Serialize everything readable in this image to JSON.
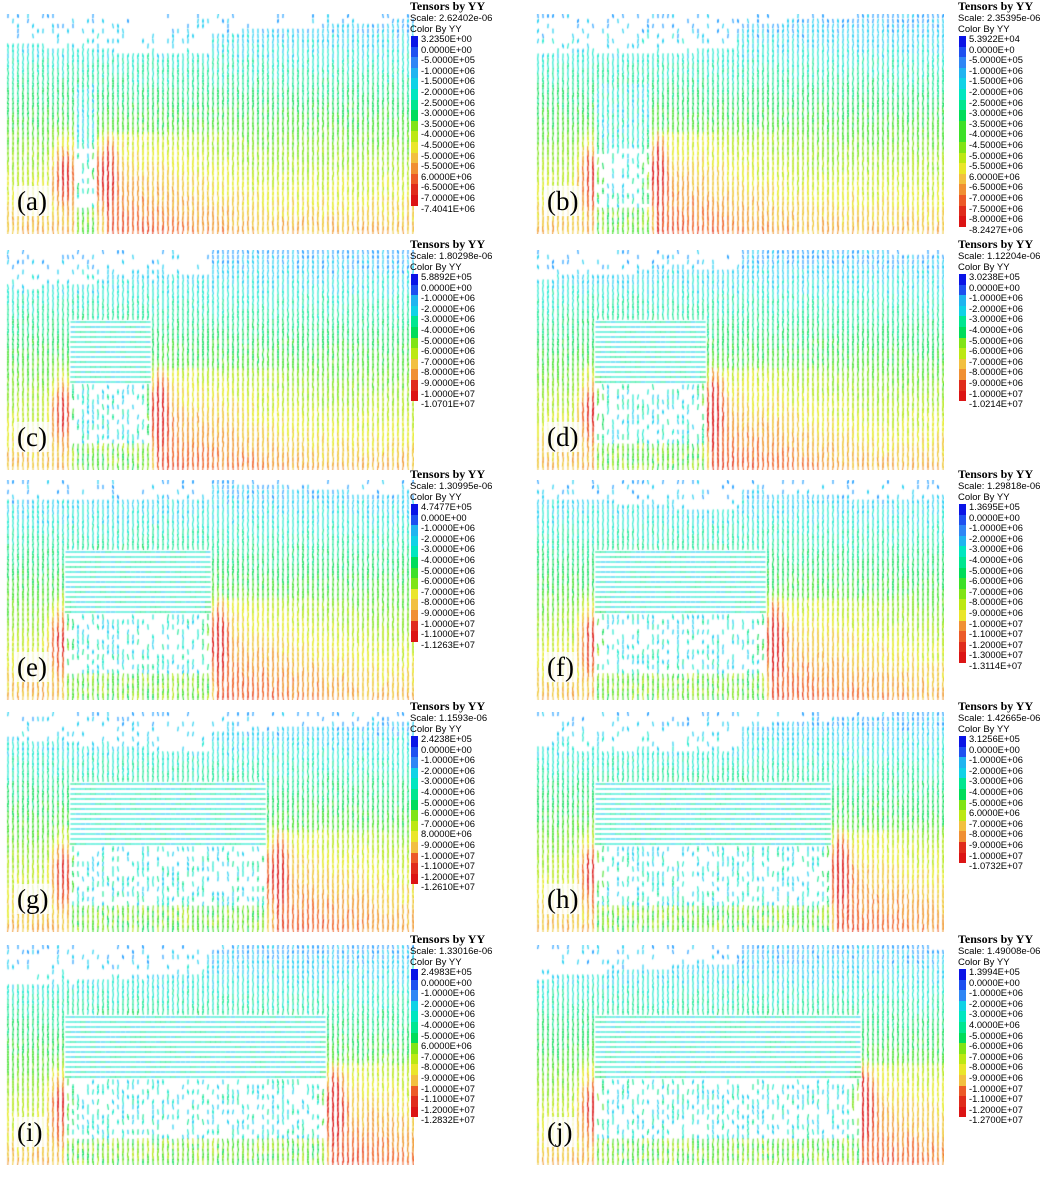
{
  "colors": {
    "bins": [
      "#0a14e6",
      "#0050ff",
      "#0090ff",
      "#00c8f0",
      "#00e6c8",
      "#00e68c",
      "#00dc50",
      "#38e020",
      "#7ce414",
      "#b4e814",
      "#e6ec28",
      "#f0c83c",
      "#f09a32",
      "#f06428",
      "#e63c1e",
      "#dc1414"
    ],
    "legend_bins": [
      "#0a14e6",
      "#1e50f0",
      "#2f86f5",
      "#20b4f0",
      "#10d2e6",
      "#00e6c0",
      "#00e690",
      "#00dc5a",
      "#3ce028",
      "#80e416",
      "#bce814",
      "#eae62a",
      "#f2c040",
      "#f09034",
      "#ec5a28",
      "#e02c1c",
      "#dc1414"
    ]
  },
  "panels": [
    {
      "tag": "(a)",
      "legend": {
        "title": "Tensors by YY",
        "scale": "Scale: 2.62402e-06",
        "color_by": "Color By YY",
        "labels": [
          "3.2350E+00",
          "0.0000E+00",
          "-5.0000E+05",
          "-1.0000E+06",
          "-1.5000E+06",
          "-2.0000E+06",
          "-2.5000E+06",
          "-3.0000E+06",
          "-3.5000E+06",
          "-4.0000E+06",
          "-4.5000E+06",
          "-5.0000E+06",
          "-5.5000E+06",
          "6.0000E+06",
          "-6.5000E+06",
          "-7.0000E+06",
          "-7.4041E+06"
        ]
      },
      "stage": {
        "openings": 1,
        "pillars": [
          0.145,
          0.24
        ],
        "zone": [
          0.17,
          0.215
        ]
      }
    },
    {
      "tag": "(b)",
      "legend": {
        "title": "Tensors by YY",
        "scale": "Scale: 2.35395e-06",
        "color_by": "Color By YY",
        "labels": [
          "5.3922E+04",
          "0.0000E+0",
          "-5.0000E+05",
          "-1.0000E+06",
          "-1.5000E+06",
          "-2.0000E+06",
          "-2.5000E+06",
          "-3.0000E+06",
          "-3.5000E+06",
          "-4.0000E+06",
          "-4.5000E+06",
          "-5.0000E+06",
          "-5.5000E+06",
          "6.0000E+06",
          "-6.5000E+06",
          "-7.0000E+06",
          "-7.5000E+06",
          "-8.0000E+06",
          "-8.2427E+06"
        ]
      },
      "stage": {
        "openings": 2,
        "pillars": [
          0.135,
          0.29
        ],
        "zone": [
          0.15,
          0.28
        ]
      }
    },
    {
      "tag": "(c)",
      "legend": {
        "title": "Tensors by YY",
        "scale": "Scale: 1.80298e-06",
        "color_by": "Color By YY",
        "labels": [
          "5.8892E+05",
          "0.0000E+00",
          "-1.0000E+06",
          "-2.0000E+06",
          "-3.0000E+06",
          "-4.0000E+06",
          "-5.0000E+06",
          "-6.0000E+06",
          "-7.0000E+06",
          "-8.0000E+06",
          "-9.0000E+06",
          "-1.0000E+07",
          "-1.0701E+07"
        ]
      },
      "stage": {
        "openings": 3,
        "pillars": [
          0.14,
          0.37
        ],
        "zone": [
          0.16,
          0.36
        ]
      }
    },
    {
      "tag": "(d)",
      "legend": {
        "title": "Tensors by YY",
        "scale": "Scale: 1.12204e-06",
        "color_by": "Color By YY",
        "labels": [
          "3.0238E+05",
          "0.0000E+00",
          "-1.0000E+06",
          "-2.0000E+06",
          "-3.0000E+06",
          "-4.0000E+06",
          "-5.0000E+06",
          "-6.0000E+06",
          "-7.0000E+06",
          "-8.0000E+06",
          "-9.0000E+06",
          "-1.0000E+07",
          "-1.0214E+07"
        ]
      },
      "stage": {
        "openings": 4,
        "pillars": [
          0.135,
          0.43
        ],
        "zone": [
          0.15,
          0.42
        ]
      }
    },
    {
      "tag": "(e)",
      "legend": {
        "title": "Tensors by YY",
        "scale": "Scale: 1.30995e-06",
        "color_by": "Color By YY",
        "labels": [
          "4.7477E+05",
          "0.000E+00",
          "-1.0000E+06",
          "-2.0000E+06",
          "-3.0000E+06",
          "-4.0000E+06",
          "-5.0000E+06",
          "-6.0000E+06",
          "-7.0000E+06",
          "-8.0000E+06",
          "-9.0000E+06",
          "-1.0000E+07",
          "-1.1000E+07",
          "-1.1263E+07"
        ]
      },
      "stage": {
        "openings": 5,
        "pillars": [
          0.135,
          0.515
        ],
        "zone": [
          0.15,
          0.5
        ]
      }
    },
    {
      "tag": "(f)",
      "legend": {
        "title": "Tensors by YY",
        "scale": "Scale: 1.29818e-06",
        "color_by": "Color By YY",
        "labels": [
          "1.3695E+05",
          "0.0000E+00",
          "-1.0000E+06",
          "-2.0000E+06",
          "-3.0000E+06",
          "-4.0000E+06",
          "-5.0000E+06",
          "-6.0000E+06",
          "-7.0000E+06",
          "-8.0000E+06",
          "-9.0000E+06",
          "-1.0000E+07",
          "-1.1000E+07",
          "-1.2000E+07",
          "-1.3000E+07",
          "-1.3114E+07"
        ]
      },
      "stage": {
        "openings": 6,
        "pillars": [
          0.135,
          0.58
        ],
        "zone": [
          0.15,
          0.565
        ]
      }
    },
    {
      "tag": "(g)",
      "legend": {
        "title": "Tensors by YY",
        "scale": "Scale: 1.1593e-06",
        "color_by": "Color By YY",
        "labels": [
          "2.4238E+05",
          "0.0000E+00",
          "-1.0000E+06",
          "-2.0000E+06",
          "-3.0000E+06",
          "-4.0000E+06",
          "-5.0000E+06",
          "-6.0000E+06",
          "-7.0000E+06",
          "8.0000E+06",
          "-9.0000E+06",
          "-1.0000E+07",
          "-1.1000E+07",
          "-1.2000E+07",
          "-1.2610E+07"
        ]
      },
      "stage": {
        "openings": 7,
        "pillars": [
          0.14,
          0.66
        ],
        "zone": [
          0.155,
          0.64
        ]
      }
    },
    {
      "tag": "(h)",
      "legend": {
        "title": "Tensors by YY",
        "scale": "Scale: 1.42665e-06",
        "color_by": "Color By YY",
        "labels": [
          "3.1256E+05",
          "0.0000E+00",
          "-1.0000E+06",
          "-2.0000E+06",
          "-3.0000E+06",
          "-4.0000E+06",
          "-5.0000E+06",
          "6.0000E+06",
          "-7.0000E+06",
          "-8.0000E+06",
          "-9.0000E+06",
          "-1.0000E+07",
          "-1.0732E+07"
        ]
      },
      "stage": {
        "openings": 7,
        "pillars": [
          0.135,
          0.74
        ],
        "zone": [
          0.15,
          0.72
        ]
      }
    },
    {
      "tag": "(i)",
      "legend": {
        "title": "Tensors by YY",
        "scale": "Scale: 1.33016e-06",
        "color_by": "Color By YY",
        "labels": [
          "2.4983E+05",
          "0.0000E+00",
          "-1.0000E+06",
          "-2.0000E+06",
          "-3.0000E+06",
          "-4.0000E+06",
          "-5.0000E+06",
          "6.0000E+06",
          "-7.0000E+06",
          "-8.0000E+06",
          "-9.0000E+06",
          "-1.0000E+07",
          "-1.1000E+07",
          "-1.2000E+07",
          "-1.2832E+07"
        ]
      },
      "stage": {
        "openings": 8,
        "pillars": [
          0.135,
          0.8
        ],
        "zone": [
          0.15,
          0.78
        ]
      }
    },
    {
      "tag": "(j)",
      "legend": {
        "title": "Tensors by YY",
        "scale": "Scale: 1.49008e-06",
        "color_by": "Color By YY",
        "labels": [
          "1.3994E+05",
          "0.0000E+00",
          "-1.0000E+06",
          "-2.0000E+06",
          "-3.0000E+06",
          "4.0000E+06",
          "-5.0000E+06",
          "-6.0000E+06",
          "-7.0000E+06",
          "-8.0000E+06",
          "-9.0000E+06",
          "-1.0000E+07",
          "-1.1000E+07",
          "-1.2000E+07",
          "-1.2700E+07"
        ]
      },
      "stage": {
        "openings": 8,
        "pillars": [
          0.135,
          0.8
        ],
        "zone": [
          0.15,
          0.79
        ]
      }
    }
  ]
}
